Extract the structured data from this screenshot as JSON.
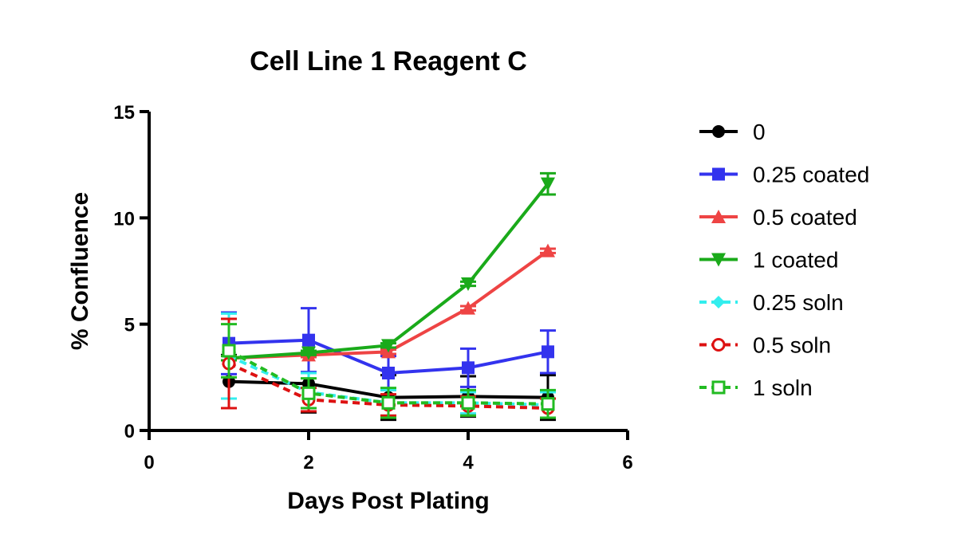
{
  "chart_data": {
    "type": "line",
    "title": "Cell Line 1 Reagent C",
    "xlabel": "Days Post Plating",
    "ylabel": "% Confluence",
    "xlim": [
      0,
      6
    ],
    "ylim": [
      0,
      15
    ],
    "xticks": [
      "0",
      "2",
      "4",
      "6"
    ],
    "yticks": [
      "0",
      "5",
      "10",
      "15"
    ],
    "grid": false,
    "legend_position": "right",
    "x": [
      1,
      2,
      3,
      4,
      5
    ],
    "series": [
      {
        "name": "0",
        "color": "#000000",
        "marker": "circle",
        "dashed": false,
        "values": [
          2.3,
          2.2,
          1.55,
          1.6,
          1.55
        ],
        "errors": [
          1.25,
          1.35,
          1.05,
          0.95,
          1.05
        ]
      },
      {
        "name": "0.25 coated",
        "color": "#3333ee",
        "marker": "square",
        "dashed": false,
        "values": [
          4.1,
          4.25,
          2.7,
          2.95,
          3.7
        ],
        "errors": [
          1.45,
          1.5,
          0.8,
          0.9,
          1.0
        ]
      },
      {
        "name": "0.5 coated",
        "color": "#ee4444",
        "marker": "triangle-up",
        "dashed": false,
        "values": [
          3.4,
          3.55,
          3.7,
          5.75,
          8.45
        ],
        "errors": [
          0.1,
          0.1,
          0.1,
          0.1,
          0.1
        ]
      },
      {
        "name": "1 coated",
        "color": "#1aaa1a",
        "marker": "triangle-down",
        "dashed": false,
        "values": [
          3.4,
          3.65,
          4.0,
          6.9,
          11.6
        ],
        "errors": [
          0.1,
          0.1,
          0.1,
          0.1,
          0.5
        ]
      },
      {
        "name": "0.25 soln",
        "color": "#33eeee",
        "marker": "diamond",
        "dashed": true,
        "values": [
          3.5,
          1.8,
          1.3,
          1.3,
          1.2
        ],
        "errors": [
          2.0,
          0.9,
          0.6,
          0.5,
          0.6
        ]
      },
      {
        "name": "0.5 soln",
        "color": "#dd1111",
        "marker": "circle-open",
        "dashed": true,
        "values": [
          3.15,
          1.45,
          1.2,
          1.15,
          1.05
        ],
        "errors": [
          2.1,
          0.55,
          0.5,
          0.45,
          0.45
        ]
      },
      {
        "name": "1 soln",
        "color": "#22bb22",
        "marker": "square-open",
        "dashed": true,
        "values": [
          3.75,
          1.75,
          1.3,
          1.3,
          1.25
        ],
        "errors": [
          1.25,
          0.7,
          0.7,
          0.6,
          0.65
        ]
      }
    ]
  }
}
